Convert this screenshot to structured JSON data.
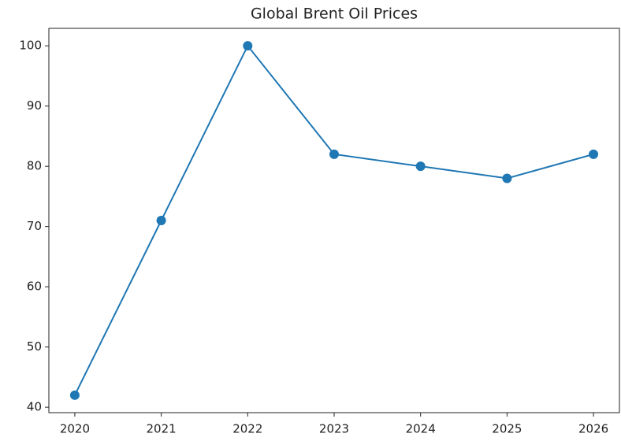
{
  "chart_data": {
    "type": "line",
    "title": "Global Brent Oil Prices",
    "x": [
      2020,
      2021,
      2022,
      2023,
      2024,
      2025,
      2026
    ],
    "series": [
      {
        "name": "Brent",
        "color": "#1f77b4",
        "values": [
          42,
          71,
          100,
          82,
          80,
          78,
          82
        ]
      }
    ],
    "xlim": [
      2019.7,
      2026.3
    ],
    "xticks": [
      2020,
      2021,
      2022,
      2023,
      2024,
      2025,
      2026
    ],
    "ylim": [
      39.1,
      102.9
    ],
    "yticks": [
      40,
      50,
      60,
      70,
      80,
      90,
      100
    ],
    "grid": false
  }
}
